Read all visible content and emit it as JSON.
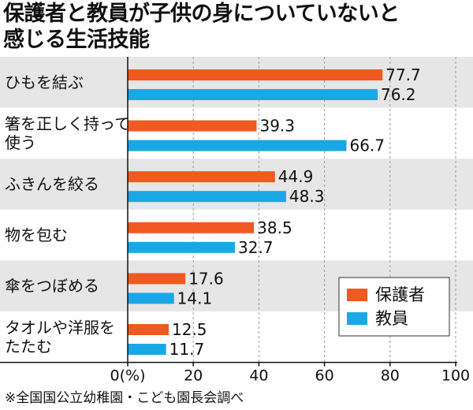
{
  "title_lines": [
    "保護者と教員が子供の身についていないと",
    "感じる生活技能"
  ],
  "source_note": "※全国国公立幼稚園・こども園長会調べ",
  "colors": {
    "guardian": "#f05a22",
    "teacher": "#1aa7e6",
    "band": "#e6e6e6",
    "grid": "#9a9a9a"
  },
  "chart_data": {
    "type": "bar",
    "orientation": "horizontal",
    "categories": [
      [
        "ひもを結ぶ"
      ],
      [
        "箸を正しく持って",
        "使う"
      ],
      [
        "ふきんを絞る"
      ],
      [
        "物を包む"
      ],
      [
        "傘をつぼめる"
      ],
      [
        "タオルや洋服を",
        "たたむ"
      ]
    ],
    "series": [
      {
        "name": "保護者",
        "color": "#f05a22",
        "values": [
          77.7,
          39.3,
          44.9,
          38.5,
          17.6,
          12.5
        ]
      },
      {
        "name": "教員",
        "color": "#1aa7e6",
        "values": [
          76.2,
          66.7,
          48.3,
          32.7,
          14.1,
          11.7
        ]
      }
    ],
    "xlim": [
      0,
      100
    ],
    "x_ticks": [
      0,
      20,
      40,
      60,
      80,
      100
    ],
    "x_tick_labels": [
      "0(%)",
      "20",
      "40",
      "60",
      "80",
      "100"
    ],
    "legend_position": "bottom-right",
    "grid": true
  }
}
